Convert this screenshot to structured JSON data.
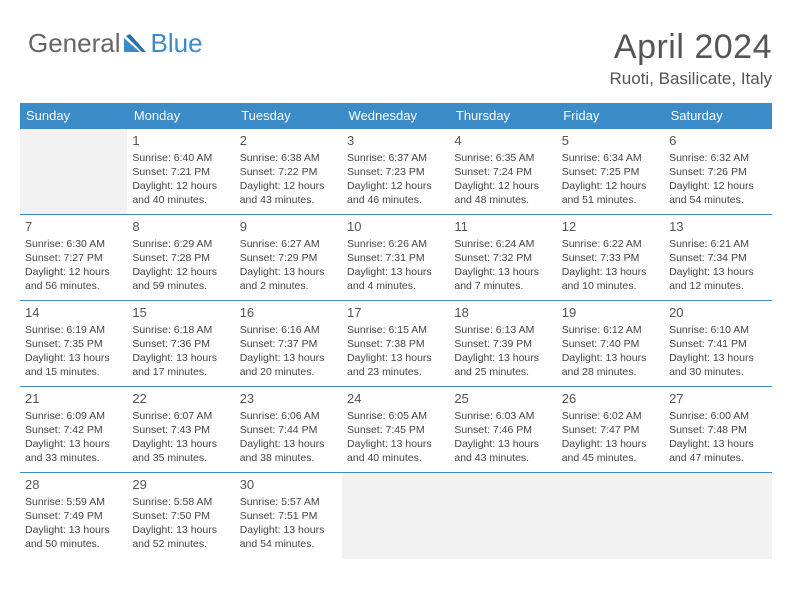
{
  "logo": {
    "general": "General",
    "blue": "Blue"
  },
  "title": "April 2024",
  "location": "Ruoti, Basilicate, Italy",
  "weekdays": [
    "Sunday",
    "Monday",
    "Tuesday",
    "Wednesday",
    "Thursday",
    "Friday",
    "Saturday"
  ],
  "colors": {
    "header_bg": "#3b8bc9",
    "header_text": "#ffffff",
    "logo_gray": "#666666",
    "logo_blue": "#3b8bc9",
    "cell_border": "#3b8bc9",
    "empty_bg": "#f2f2f2",
    "text": "#444444"
  },
  "grid": [
    [
      {
        "day": "",
        "lines": []
      },
      {
        "day": "1",
        "lines": [
          "Sunrise: 6:40 AM",
          "Sunset: 7:21 PM",
          "Daylight: 12 hours and 40 minutes."
        ]
      },
      {
        "day": "2",
        "lines": [
          "Sunrise: 6:38 AM",
          "Sunset: 7:22 PM",
          "Daylight: 12 hours and 43 minutes."
        ]
      },
      {
        "day": "3",
        "lines": [
          "Sunrise: 6:37 AM",
          "Sunset: 7:23 PM",
          "Daylight: 12 hours and 46 minutes."
        ]
      },
      {
        "day": "4",
        "lines": [
          "Sunrise: 6:35 AM",
          "Sunset: 7:24 PM",
          "Daylight: 12 hours and 48 minutes."
        ]
      },
      {
        "day": "5",
        "lines": [
          "Sunrise: 6:34 AM",
          "Sunset: 7:25 PM",
          "Daylight: 12 hours and 51 minutes."
        ]
      },
      {
        "day": "6",
        "lines": [
          "Sunrise: 6:32 AM",
          "Sunset: 7:26 PM",
          "Daylight: 12 hours and 54 minutes."
        ]
      }
    ],
    [
      {
        "day": "7",
        "lines": [
          "Sunrise: 6:30 AM",
          "Sunset: 7:27 PM",
          "Daylight: 12 hours and 56 minutes."
        ]
      },
      {
        "day": "8",
        "lines": [
          "Sunrise: 6:29 AM",
          "Sunset: 7:28 PM",
          "Daylight: 12 hours and 59 minutes."
        ]
      },
      {
        "day": "9",
        "lines": [
          "Sunrise: 6:27 AM",
          "Sunset: 7:29 PM",
          "Daylight: 13 hours and 2 minutes."
        ]
      },
      {
        "day": "10",
        "lines": [
          "Sunrise: 6:26 AM",
          "Sunset: 7:31 PM",
          "Daylight: 13 hours and 4 minutes."
        ]
      },
      {
        "day": "11",
        "lines": [
          "Sunrise: 6:24 AM",
          "Sunset: 7:32 PM",
          "Daylight: 13 hours and 7 minutes."
        ]
      },
      {
        "day": "12",
        "lines": [
          "Sunrise: 6:22 AM",
          "Sunset: 7:33 PM",
          "Daylight: 13 hours and 10 minutes."
        ]
      },
      {
        "day": "13",
        "lines": [
          "Sunrise: 6:21 AM",
          "Sunset: 7:34 PM",
          "Daylight: 13 hours and 12 minutes."
        ]
      }
    ],
    [
      {
        "day": "14",
        "lines": [
          "Sunrise: 6:19 AM",
          "Sunset: 7:35 PM",
          "Daylight: 13 hours and 15 minutes."
        ]
      },
      {
        "day": "15",
        "lines": [
          "Sunrise: 6:18 AM",
          "Sunset: 7:36 PM",
          "Daylight: 13 hours and 17 minutes."
        ]
      },
      {
        "day": "16",
        "lines": [
          "Sunrise: 6:16 AM",
          "Sunset: 7:37 PM",
          "Daylight: 13 hours and 20 minutes."
        ]
      },
      {
        "day": "17",
        "lines": [
          "Sunrise: 6:15 AM",
          "Sunset: 7:38 PM",
          "Daylight: 13 hours and 23 minutes."
        ]
      },
      {
        "day": "18",
        "lines": [
          "Sunrise: 6:13 AM",
          "Sunset: 7:39 PM",
          "Daylight: 13 hours and 25 minutes."
        ]
      },
      {
        "day": "19",
        "lines": [
          "Sunrise: 6:12 AM",
          "Sunset: 7:40 PM",
          "Daylight: 13 hours and 28 minutes."
        ]
      },
      {
        "day": "20",
        "lines": [
          "Sunrise: 6:10 AM",
          "Sunset: 7:41 PM",
          "Daylight: 13 hours and 30 minutes."
        ]
      }
    ],
    [
      {
        "day": "21",
        "lines": [
          "Sunrise: 6:09 AM",
          "Sunset: 7:42 PM",
          "Daylight: 13 hours and 33 minutes."
        ]
      },
      {
        "day": "22",
        "lines": [
          "Sunrise: 6:07 AM",
          "Sunset: 7:43 PM",
          "Daylight: 13 hours and 35 minutes."
        ]
      },
      {
        "day": "23",
        "lines": [
          "Sunrise: 6:06 AM",
          "Sunset: 7:44 PM",
          "Daylight: 13 hours and 38 minutes."
        ]
      },
      {
        "day": "24",
        "lines": [
          "Sunrise: 6:05 AM",
          "Sunset: 7:45 PM",
          "Daylight: 13 hours and 40 minutes."
        ]
      },
      {
        "day": "25",
        "lines": [
          "Sunrise: 6:03 AM",
          "Sunset: 7:46 PM",
          "Daylight: 13 hours and 43 minutes."
        ]
      },
      {
        "day": "26",
        "lines": [
          "Sunrise: 6:02 AM",
          "Sunset: 7:47 PM",
          "Daylight: 13 hours and 45 minutes."
        ]
      },
      {
        "day": "27",
        "lines": [
          "Sunrise: 6:00 AM",
          "Sunset: 7:48 PM",
          "Daylight: 13 hours and 47 minutes."
        ]
      }
    ],
    [
      {
        "day": "28",
        "lines": [
          "Sunrise: 5:59 AM",
          "Sunset: 7:49 PM",
          "Daylight: 13 hours and 50 minutes."
        ]
      },
      {
        "day": "29",
        "lines": [
          "Sunrise: 5:58 AM",
          "Sunset: 7:50 PM",
          "Daylight: 13 hours and 52 minutes."
        ]
      },
      {
        "day": "30",
        "lines": [
          "Sunrise: 5:57 AM",
          "Sunset: 7:51 PM",
          "Daylight: 13 hours and 54 minutes."
        ]
      },
      {
        "day": "",
        "lines": []
      },
      {
        "day": "",
        "lines": []
      },
      {
        "day": "",
        "lines": []
      },
      {
        "day": "",
        "lines": []
      }
    ]
  ]
}
